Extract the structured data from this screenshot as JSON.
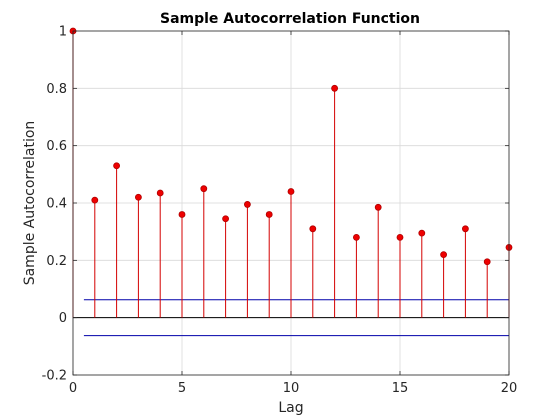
{
  "chart_data": {
    "type": "stem",
    "title": "Sample Autocorrelation Function",
    "xlabel": "Lag",
    "ylabel": "Sample Autocorrelation",
    "xlim": [
      0,
      20
    ],
    "ylim": [
      -0.2,
      1
    ],
    "xticks": [
      0,
      5,
      10,
      15,
      20
    ],
    "yticks": [
      -0.2,
      0,
      0.2,
      0.4,
      0.6,
      0.8,
      1
    ],
    "ytick_labels": [
      "-0.2",
      "0",
      "0.2",
      "0.4",
      "0.6",
      "0.8",
      "1"
    ],
    "grid": true,
    "x": [
      0,
      1,
      2,
      3,
      4,
      5,
      6,
      7,
      8,
      9,
      10,
      11,
      12,
      13,
      14,
      15,
      16,
      17,
      18,
      19,
      20
    ],
    "values": [
      1.0,
      0.41,
      0.53,
      0.42,
      0.435,
      0.36,
      0.45,
      0.345,
      0.395,
      0.36,
      0.44,
      0.31,
      0.8,
      0.28,
      0.385,
      0.28,
      0.295,
      0.22,
      0.31,
      0.195,
      0.245
    ],
    "confidence_bounds": [
      0.0625,
      -0.0625
    ],
    "colors": {
      "stem": "#d40000",
      "marker": "#ee0000",
      "bound": "#0000aa",
      "zero_line": "#000000",
      "grid": "#d9d9d9"
    }
  }
}
